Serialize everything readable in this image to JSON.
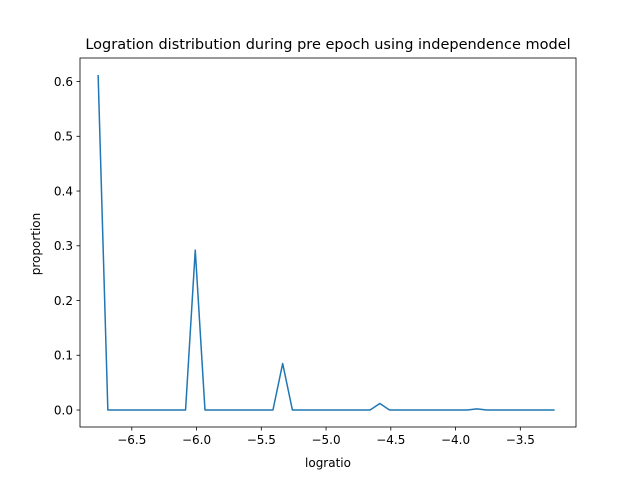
{
  "chart_data": {
    "type": "line",
    "title": "Logration distribution during pre epoch using independence model",
    "xlabel": "logratio",
    "ylabel": "proportion",
    "xlim": [
      -6.9,
      -3.07
    ],
    "ylim": [
      -0.031,
      0.643
    ],
    "xticks": [
      -6.5,
      -6.0,
      -5.5,
      -5.0,
      -4.5,
      -4.0,
      -3.5
    ],
    "xtick_labels": [
      "−6.5",
      "−6.0",
      "−5.5",
      "−5.0",
      "−4.5",
      "−4.0",
      "−3.5"
    ],
    "yticks": [
      0.0,
      0.1,
      0.2,
      0.3,
      0.4,
      0.5,
      0.6
    ],
    "ytick_labels": [
      "0.0",
      "0.1",
      "0.2",
      "0.3",
      "0.4",
      "0.5",
      "0.6"
    ],
    "grid": false,
    "series": [
      {
        "color": "#1f77b4",
        "x": [
          -6.76,
          -6.685,
          -6.61,
          -6.535,
          -6.46,
          -6.385,
          -6.31,
          -6.235,
          -6.16,
          -6.085,
          -6.01,
          -5.935,
          -5.86,
          -5.785,
          -5.71,
          -5.635,
          -5.56,
          -5.485,
          -5.41,
          -5.335,
          -5.26,
          -5.185,
          -5.11,
          -5.035,
          -4.96,
          -4.885,
          -4.81,
          -4.735,
          -4.66,
          -4.585,
          -4.51,
          -4.435,
          -4.36,
          -4.285,
          -4.21,
          -4.135,
          -4.06,
          -3.985,
          -3.91,
          -3.835,
          -3.76,
          -3.685,
          -3.61,
          -3.535,
          -3.46,
          -3.385,
          -3.31,
          -3.235
        ],
        "y": [
          0.612,
          0.0,
          0.0,
          0.0,
          0.0,
          0.0,
          0.0,
          0.0,
          0.0,
          0.0,
          0.292,
          0.0,
          0.0,
          0.0,
          0.0,
          0.0,
          0.0,
          0.0,
          0.0,
          0.085,
          0.0,
          0.0,
          0.0,
          0.0,
          0.0,
          0.0,
          0.0,
          0.0,
          0.0,
          0.012,
          0.0,
          0.0,
          0.0,
          0.0,
          0.0,
          0.0,
          0.0,
          0.0,
          0.0,
          0.002,
          0.0,
          0.0,
          0.0,
          0.0,
          0.0,
          0.0,
          0.0,
          0.0
        ]
      }
    ]
  }
}
